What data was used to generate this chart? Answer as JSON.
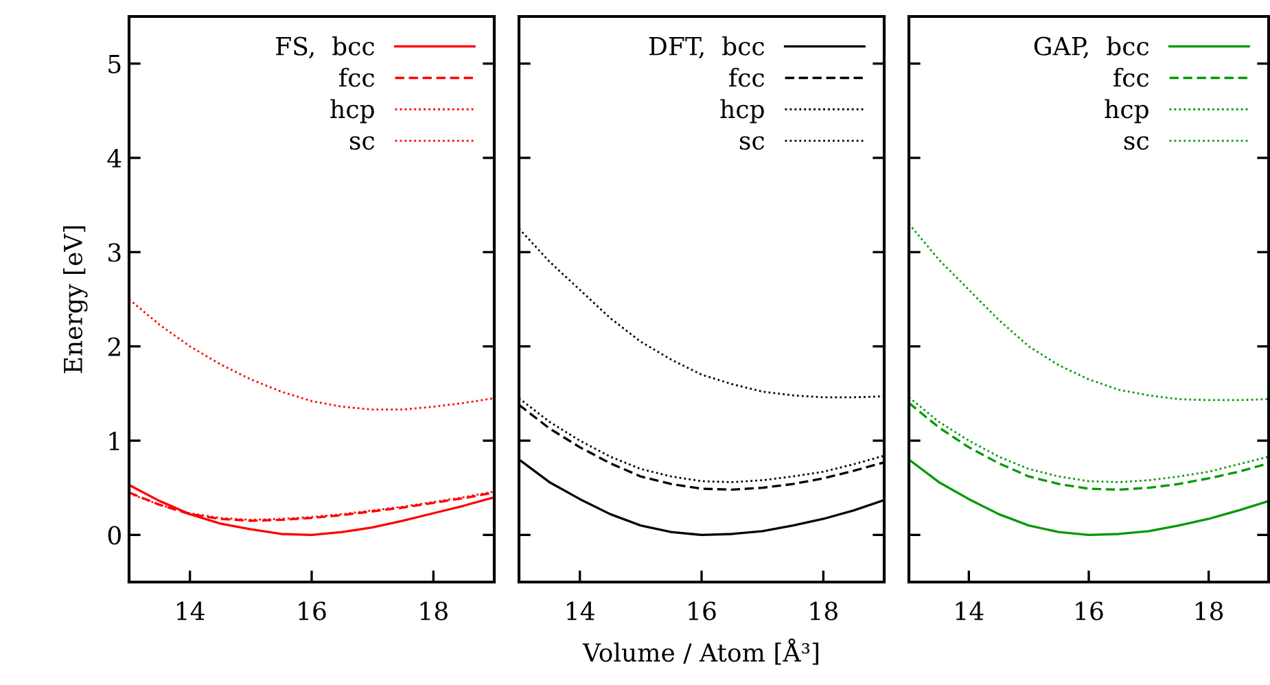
{
  "chart_data": [
    {
      "type": "line",
      "ylabel": "Energy [eV]",
      "x": [
        13,
        13.5,
        14,
        14.5,
        15,
        15.5,
        16,
        16.5,
        17,
        17.5,
        18,
        18.5,
        19
      ],
      "xlim": [
        13,
        19
      ],
      "xticks": [
        14,
        16,
        18
      ],
      "ylim": [
        -0.5,
        5.5
      ],
      "yticks": [
        0,
        1,
        2,
        3,
        4,
        5
      ],
      "legend": "top right",
      "grid": false,
      "series": [
        {
          "name": "FS,  bcc",
          "color": "#ff0000",
          "line_style": "solid",
          "values": [
            0.53,
            0.36,
            0.22,
            0.12,
            0.06,
            0.01,
            0.0,
            0.03,
            0.08,
            0.15,
            0.23,
            0.31,
            0.4
          ]
        },
        {
          "name": "fcc",
          "color": "#ff0000",
          "line_style": "dashed",
          "values": [
            0.45,
            0.32,
            0.22,
            0.17,
            0.15,
            0.16,
            0.18,
            0.21,
            0.25,
            0.29,
            0.34,
            0.39,
            0.45
          ]
        },
        {
          "name": "hcp",
          "color": "#ff0000",
          "line_style": "dotted",
          "values": [
            0.44,
            0.32,
            0.23,
            0.18,
            0.16,
            0.17,
            0.19,
            0.22,
            0.26,
            0.3,
            0.35,
            0.4,
            0.46
          ]
        },
        {
          "name": "sc",
          "color": "#ff0000",
          "line_style": "dotted",
          "values": [
            2.5,
            2.23,
            2.0,
            1.81,
            1.65,
            1.52,
            1.42,
            1.36,
            1.33,
            1.33,
            1.36,
            1.4,
            1.45
          ]
        }
      ]
    },
    {
      "type": "line",
      "xlabel": "Volume / Atom [Å³]",
      "x": [
        13,
        13.5,
        14,
        14.5,
        15,
        15.5,
        16,
        16.5,
        17,
        17.5,
        18,
        18.5,
        19
      ],
      "xlim": [
        13,
        19
      ],
      "xticks": [
        14,
        16,
        18
      ],
      "ylim": [
        -0.5,
        5.5
      ],
      "yticks": [
        0,
        1,
        2,
        3,
        4,
        5
      ],
      "tick_labels": "x",
      "legend": "top right",
      "grid": false,
      "series": [
        {
          "name": "DFT,  bcc",
          "color": "#000000",
          "line_style": "solid",
          "values": [
            0.8,
            0.56,
            0.38,
            0.22,
            0.1,
            0.03,
            0.0,
            0.01,
            0.04,
            0.1,
            0.17,
            0.26,
            0.37
          ]
        },
        {
          "name": "fcc",
          "color": "#000000",
          "line_style": "dashed",
          "values": [
            1.38,
            1.13,
            0.93,
            0.76,
            0.62,
            0.54,
            0.49,
            0.48,
            0.5,
            0.54,
            0.6,
            0.68,
            0.77
          ]
        },
        {
          "name": "hcp",
          "color": "#000000",
          "line_style": "dotted",
          "values": [
            1.45,
            1.2,
            1.0,
            0.83,
            0.7,
            0.62,
            0.57,
            0.56,
            0.58,
            0.62,
            0.67,
            0.75,
            0.84
          ]
        },
        {
          "name": "sc",
          "color": "#000000",
          "line_style": "dotted",
          "values": [
            3.25,
            2.9,
            2.6,
            2.3,
            2.05,
            1.86,
            1.7,
            1.6,
            1.52,
            1.48,
            1.46,
            1.46,
            1.47
          ]
        }
      ]
    },
    {
      "type": "line",
      "x": [
        13,
        13.5,
        14,
        14.5,
        15,
        15.5,
        16,
        16.5,
        17,
        17.5,
        18,
        18.5,
        19
      ],
      "xlim": [
        13,
        19
      ],
      "xticks": [
        14,
        16,
        18
      ],
      "ylim": [
        -0.5,
        5.5
      ],
      "yticks": [
        0,
        1,
        2,
        3,
        4,
        5
      ],
      "tick_labels": "x",
      "legend": "top right",
      "grid": false,
      "series": [
        {
          "name": "GAP,  bcc",
          "color": "#009900",
          "line_style": "solid",
          "values": [
            0.8,
            0.56,
            0.38,
            0.22,
            0.1,
            0.03,
            0.0,
            0.01,
            0.04,
            0.1,
            0.17,
            0.26,
            0.36
          ]
        },
        {
          "name": "fcc",
          "color": "#009900",
          "line_style": "dashed",
          "values": [
            1.4,
            1.14,
            0.93,
            0.76,
            0.62,
            0.54,
            0.49,
            0.48,
            0.5,
            0.54,
            0.6,
            0.67,
            0.76
          ]
        },
        {
          "name": "hcp",
          "color": "#009900",
          "line_style": "dotted",
          "values": [
            1.46,
            1.2,
            1.0,
            0.83,
            0.7,
            0.62,
            0.57,
            0.56,
            0.58,
            0.62,
            0.67,
            0.75,
            0.83
          ]
        },
        {
          "name": "sc",
          "color": "#009900",
          "line_style": "dotted",
          "values": [
            3.3,
            2.92,
            2.6,
            2.28,
            2.0,
            1.8,
            1.65,
            1.54,
            1.48,
            1.44,
            1.43,
            1.43,
            1.44
          ]
        }
      ]
    }
  ]
}
